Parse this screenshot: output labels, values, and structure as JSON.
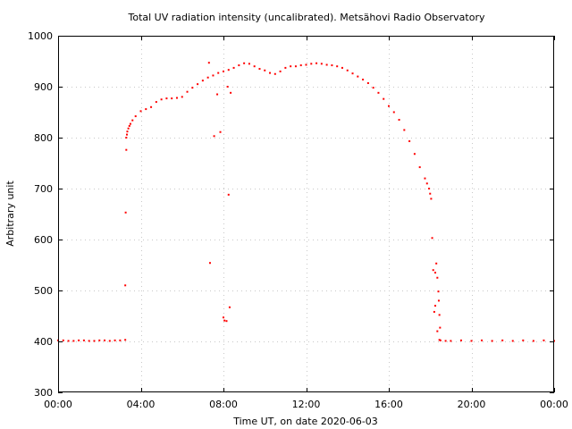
{
  "chart_data": {
    "type": "scatter",
    "title": "Total UV radiation intensity (uncalibrated). Metsähovi Radio Observatory",
    "xlabel": "Time UT, on date 2020-06-03",
    "ylabel": "Arbitrary unit",
    "x_unit": "hours UT",
    "xlim": [
      0,
      24
    ],
    "ylim": [
      300,
      1000
    ],
    "xticks": [
      0,
      4,
      8,
      12,
      16,
      20,
      24
    ],
    "xtick_labels": [
      "00:00",
      "04:00",
      "08:00",
      "12:00",
      "16:00",
      "20:00",
      "00:00"
    ],
    "yticks": [
      300,
      400,
      500,
      600,
      700,
      800,
      900,
      1000
    ],
    "ytick_labels": [
      "300",
      "400",
      "500",
      "600",
      "700",
      "800",
      "900",
      "1000"
    ],
    "grid": true,
    "marker_color": "#ff0000",
    "series": [
      {
        "x": [
          0.0,
          0.25,
          0.5,
          0.75,
          1.0,
          1.25,
          1.5,
          1.75,
          2.0,
          2.25,
          2.5,
          2.75,
          3.0,
          3.25,
          3.3,
          3.33,
          3.35,
          3.4,
          3.45,
          3.5,
          3.6,
          3.75,
          4.0,
          4.25,
          4.5,
          4.75,
          5.0,
          5.25,
          5.5,
          5.75,
          6.0,
          6.25,
          6.5,
          6.75,
          7.0,
          7.25,
          7.5,
          7.75,
          8.0,
          8.25,
          8.5,
          8.75,
          9.0,
          9.25,
          9.5,
          9.75,
          10.0,
          10.25,
          10.5,
          10.75,
          11.0,
          11.25,
          11.5,
          11.75,
          12.0,
          12.25,
          12.5,
          12.75,
          13.0,
          13.25,
          13.5,
          13.75,
          14.0,
          14.25,
          14.5,
          14.75,
          15.0,
          15.25,
          15.5,
          15.75,
          16.0,
          16.25,
          16.5,
          16.75,
          17.0,
          17.25,
          17.5,
          17.75,
          17.85,
          17.95,
          18.0,
          18.05,
          18.15,
          18.25,
          18.35,
          18.45,
          18.5,
          18.75,
          19.0,
          19.5,
          20.0,
          20.5,
          21.0,
          21.5,
          22.0,
          22.5,
          23.0,
          23.5,
          24.0
        ],
        "y": [
          402,
          402,
          401,
          401,
          402,
          402,
          401,
          401,
          402,
          402,
          401,
          402,
          402,
          403,
          800,
          806,
          812,
          818,
          823,
          827,
          834,
          842,
          852,
          856,
          860,
          870,
          875,
          877,
          877,
          878,
          880,
          890,
          898,
          905,
          912,
          918,
          922,
          927,
          930,
          933,
          937,
          942,
          946,
          945,
          940,
          935,
          932,
          927,
          925,
          930,
          937,
          940,
          940,
          942,
          943,
          945,
          946,
          945,
          943,
          942,
          940,
          937,
          932,
          926,
          920,
          914,
          907,
          898,
          888,
          876,
          862,
          850,
          835,
          815,
          793,
          768,
          742,
          720,
          710,
          700,
          690,
          680,
          540,
          470,
          420,
          403,
          402,
          401,
          401,
          402,
          401,
          402,
          401,
          402,
          401,
          402,
          401,
          402,
          401
        ]
      },
      {
        "x": [
          3.25,
          3.27,
          3.3,
          7.35,
          7.55,
          7.7,
          7.85,
          8.0,
          8.05,
          8.15,
          8.25,
          8.3,
          8.35,
          7.3,
          8.2,
          18.1,
          18.2,
          18.25,
          18.3,
          18.35,
          18.4,
          18.42,
          18.45,
          18.48
        ],
        "y": [
          510,
          653,
          776,
          554,
          803,
          885,
          811,
          447,
          441,
          440,
          688,
          467,
          888,
          947,
          900,
          603,
          458,
          535,
          553,
          525,
          498,
          480,
          452,
          427
        ]
      }
    ]
  }
}
